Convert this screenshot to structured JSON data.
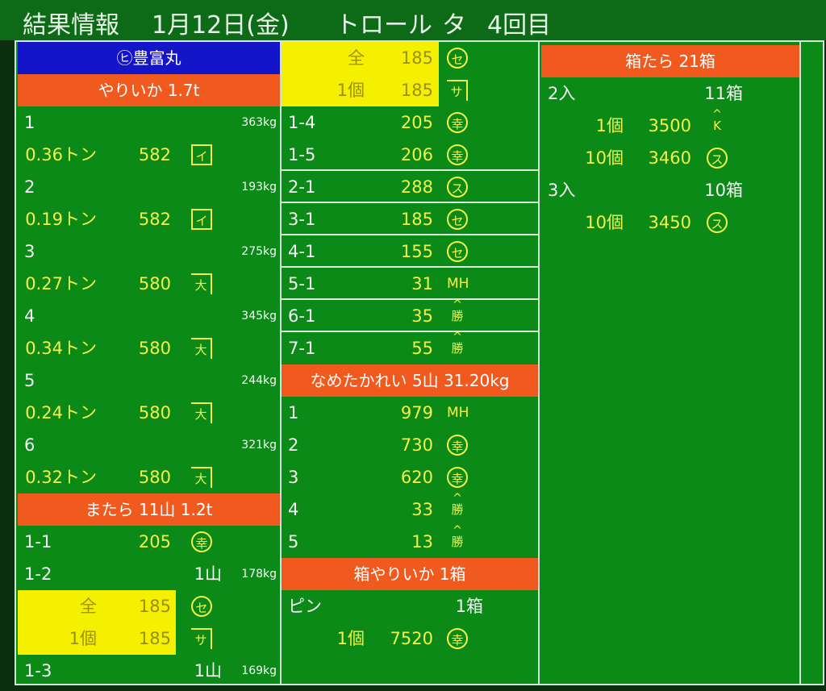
{
  "title": {
    "label": "結果情報",
    "date": "1月12日(金)",
    "method": "トロール",
    "session": "タ",
    "round": "4回目"
  },
  "colors": {
    "board": "#0c8a18",
    "header_blue": "#1414c8",
    "header_orange": "#f05a1e",
    "highlight": "#f5f000",
    "text_yellow": "#f2f24a"
  },
  "columns": [
    {
      "rows": [
        {
          "type": "hdr",
          "text": "㋪豊富丸",
          "bg": "blue"
        },
        {
          "type": "hdr",
          "text": "やりいか 1.7t",
          "bg": "orange"
        },
        {
          "label": "1",
          "weight": "363kg"
        },
        {
          "qty": "0.36トン",
          "price": "582",
          "mark": "イ",
          "mark_style": "box"
        },
        {
          "label": "2",
          "weight": "193kg"
        },
        {
          "qty": "0.19トン",
          "price": "582",
          "mark": "イ",
          "mark_style": "box"
        },
        {
          "label": "3",
          "weight": "275kg"
        },
        {
          "qty": "0.27トン",
          "price": "580",
          "mark": "大",
          "mark_style": "corner"
        },
        {
          "label": "4",
          "weight": "345kg"
        },
        {
          "qty": "0.34トン",
          "price": "580",
          "mark": "大",
          "mark_style": "corner"
        },
        {
          "label": "5",
          "weight": "244kg"
        },
        {
          "qty": "0.24トン",
          "price": "580",
          "mark": "大",
          "mark_style": "corner"
        },
        {
          "label": "6",
          "weight": "321kg"
        },
        {
          "qty": "0.32トン",
          "price": "580",
          "mark": "大",
          "mark_style": "corner"
        },
        {
          "type": "hdr",
          "text": "またら 11山 1.2t",
          "bg": "orange"
        },
        {
          "label": "1-1",
          "price": "205",
          "mark": "幸",
          "mark_style": "circle"
        },
        {
          "label": "1-2",
          "count": "1山",
          "weight": "178kg"
        },
        {
          "qty": "全",
          "price": "185",
          "mark": "セ",
          "mark_style": "circle",
          "highlight": true
        },
        {
          "qty": "1個",
          "price": "185",
          "mark": "サ",
          "mark_style": "corner",
          "highlight": true
        },
        {
          "label": "1-3",
          "count": "1山",
          "weight": "169kg"
        }
      ]
    },
    {
      "rows": [
        {
          "qty": "全",
          "price": "185",
          "mark": "セ",
          "mark_style": "circle",
          "highlight": true
        },
        {
          "qty": "1個",
          "price": "185",
          "mark": "サ",
          "mark_style": "corner",
          "highlight": true
        },
        {
          "label": "1-4",
          "price": "205",
          "mark": "幸",
          "mark_style": "circle"
        },
        {
          "label": "1-5",
          "price": "206",
          "mark": "幸",
          "mark_style": "circle",
          "group_end": true
        },
        {
          "label": "2-1",
          "price": "288",
          "mark": "ス",
          "mark_style": "circle",
          "group_end": true
        },
        {
          "label": "3-1",
          "price": "185",
          "mark": "セ",
          "mark_style": "circle",
          "group_end": true
        },
        {
          "label": "4-1",
          "price": "155",
          "mark": "セ",
          "mark_style": "circle",
          "group_end": true
        },
        {
          "label": "5-1",
          "price": "31",
          "mark": "MH",
          "mark_style": "plain",
          "group_end": true
        },
        {
          "label": "6-1",
          "price": "35",
          "mark": "勝",
          "mark_style": "hat",
          "group_end": true
        },
        {
          "label": "7-1",
          "price": "55",
          "mark": "勝",
          "mark_style": "hat"
        },
        {
          "type": "hdr",
          "text": "なめたかれい 5山 31.20kg",
          "bg": "orange"
        },
        {
          "label": "1",
          "price": "979",
          "mark": "MH",
          "mark_style": "plain"
        },
        {
          "label": "2",
          "price": "730",
          "mark": "幸",
          "mark_style": "circle"
        },
        {
          "label": "3",
          "price": "620",
          "mark": "幸",
          "mark_style": "circle"
        },
        {
          "label": "4",
          "price": "33",
          "mark": "勝",
          "mark_style": "hat"
        },
        {
          "label": "5",
          "price": "13",
          "mark": "勝",
          "mark_style": "hat"
        },
        {
          "type": "hdr",
          "text": "箱やりいか 1箱",
          "bg": "orange"
        },
        {
          "label": "ピン",
          "count": "1箱"
        },
        {
          "qty": "1個",
          "price": "7520",
          "mark": "幸",
          "mark_style": "circle"
        }
      ]
    },
    {
      "rows": [
        {
          "type": "hdr",
          "text": "箱たら 21箱",
          "bg": "orange"
        },
        {
          "label": "2入",
          "count": "11箱"
        },
        {
          "qty": "1個",
          "price": "3500",
          "mark": "K",
          "mark_style": "hat"
        },
        {
          "qty": "10個",
          "price": "3460",
          "mark": "ス",
          "mark_style": "circle"
        },
        {
          "label": "3入",
          "count": "10箱"
        },
        {
          "qty": "10個",
          "price": "3450",
          "mark": "ス",
          "mark_style": "circle"
        }
      ]
    }
  ]
}
